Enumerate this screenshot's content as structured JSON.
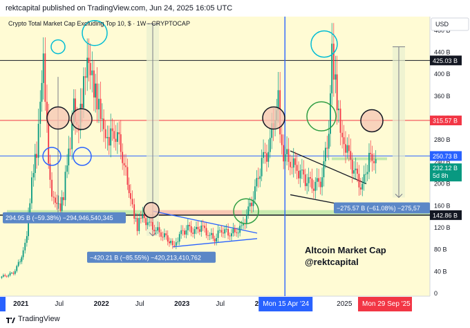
{
  "header": {
    "published_text": "rektcapital published on TradingView.com, Jun 24, 2025 16:05 UTC"
  },
  "footer": {
    "brand": "TradingView"
  },
  "chart_data": {
    "type": "candlestick",
    "title": "Crypto Total Market Cap Excluding Top 10, $ · 1W · CRYPTOCAP",
    "currency_button": "USD",
    "y_axis": {
      "scale": "linear",
      "range": [
        -5,
        505
      ],
      "ticks": [
        "480 B",
        "440 B",
        "400 B",
        "360 B",
        "320 B",
        "280 B",
        "240 B",
        "200 B",
        "160 B",
        "120 B",
        "80 B",
        "40 B",
        "0"
      ],
      "tick_values": [
        480,
        440,
        400,
        360,
        320,
        280,
        240,
        200,
        160,
        120,
        80,
        40,
        0
      ]
    },
    "x_axis": {
      "ticks": [
        "2021",
        "Jul",
        "2022",
        "Jul",
        "2023",
        "Jul",
        "2",
        "2025"
      ],
      "tick_dates": [
        "2021-01",
        "2021-07",
        "2022-01",
        "2022-07",
        "2023-01",
        "2023-07",
        "2024-01",
        "2025-01"
      ]
    },
    "x_markers": [
      {
        "label": "Mon 15 Apr '24",
        "date": "2024-04-15",
        "color": "#2962ff"
      },
      {
        "label": "Mon 29 Sep '25",
        "date": "2025-09-29",
        "color": "#f23645"
      }
    ],
    "horizontal_levels": [
      {
        "value": 425.03,
        "label": "425.03 B",
        "color": "#131722",
        "label_bg": "#131722"
      },
      {
        "value": 315.57,
        "label": "315.57 B",
        "color": "#f23645",
        "label_bg": "#f23645"
      },
      {
        "value": 250.73,
        "label": "250.73 B",
        "color": "#2962ff",
        "label_bg": "#2962ff"
      },
      {
        "value": 142.86,
        "label": "142.86 B",
        "color": "#131722",
        "label_bg": "#131722"
      }
    ],
    "last_price": {
      "value": 232.12,
      "label": "232.12 B",
      "countdown": "5d 8h",
      "color": "#089981"
    },
    "zones": [
      {
        "name": "green support",
        "from": 142.86,
        "to": 152
      },
      {
        "name": "red resistance",
        "from": 142.86,
        "to": 152
      }
    ],
    "measurements": [
      {
        "text": "294.95 B (−59.38%) −294,946,540,345"
      },
      {
        "text": "−420.21 B (−85.55%) −420,213,410,762"
      },
      {
        "text": "−275.57 B (−61.08%) −275,57"
      }
    ],
    "annotation": {
      "line1": "Altcoin Market Cap",
      "line2": "@rektcapital"
    },
    "series": [
      {
        "name": "weekly close",
        "dates": [
          "2020-10",
          "2020-11",
          "2020-12",
          "2021-01",
          "2021-01-15",
          "2021-02",
          "2021-02-15",
          "2021-03",
          "2021-03-15",
          "2021-04",
          "2021-04-15",
          "2021-05",
          "2021-05-15",
          "2021-06",
          "2021-06-15",
          "2021-07",
          "2021-07-15",
          "2021-08",
          "2021-08-15",
          "2021-09",
          "2021-09-15",
          "2021-10",
          "2021-10-15",
          "2021-11",
          "2021-11-15",
          "2021-12",
          "2021-12-15",
          "2022-01",
          "2022-01-15",
          "2022-02",
          "2022-03",
          "2022-04",
          "2022-05",
          "2022-05-15",
          "2022-06",
          "2022-06-15",
          "2022-07",
          "2022-08",
          "2022-09",
          "2022-10",
          "2022-11",
          "2022-11-15",
          "2022-12",
          "2023-01",
          "2023-02",
          "2023-03",
          "2023-04",
          "2023-05",
          "2023-06",
          "2023-07",
          "2023-08",
          "2023-09",
          "2023-10",
          "2023-11",
          "2023-12",
          "2024-01",
          "2024-02",
          "2024-03",
          "2024-03-15",
          "2024-04",
          "2024-05",
          "2024-06",
          "2024-07",
          "2024-08",
          "2024-09",
          "2024-10",
          "2024-11",
          "2024-11-15",
          "2024-12",
          "2024-12-15",
          "2025-01",
          "2025-02",
          "2025-03",
          "2025-04",
          "2025-05",
          "2025-05-15",
          "2025-06"
        ],
        "close": [
          30,
          33,
          38,
          60,
          80,
          110,
          175,
          230,
          250,
          340,
          415,
          300,
          200,
          175,
          170,
          160,
          180,
          240,
          260,
          340,
          290,
          330,
          390,
          440,
          420,
          380,
          350,
          320,
          290,
          270,
          300,
          270,
          200,
          180,
          145,
          120,
          140,
          130,
          118,
          110,
          100,
          95,
          90,
          110,
          118,
          112,
          122,
          108,
          100,
          118,
          110,
          112,
          120,
          150,
          185,
          240,
          260,
          330,
          350,
          260,
          245,
          230,
          215,
          200,
          195,
          210,
          300,
          430,
          380,
          330,
          290,
          250,
          215,
          190,
          250,
          235,
          232
        ]
      }
    ]
  }
}
